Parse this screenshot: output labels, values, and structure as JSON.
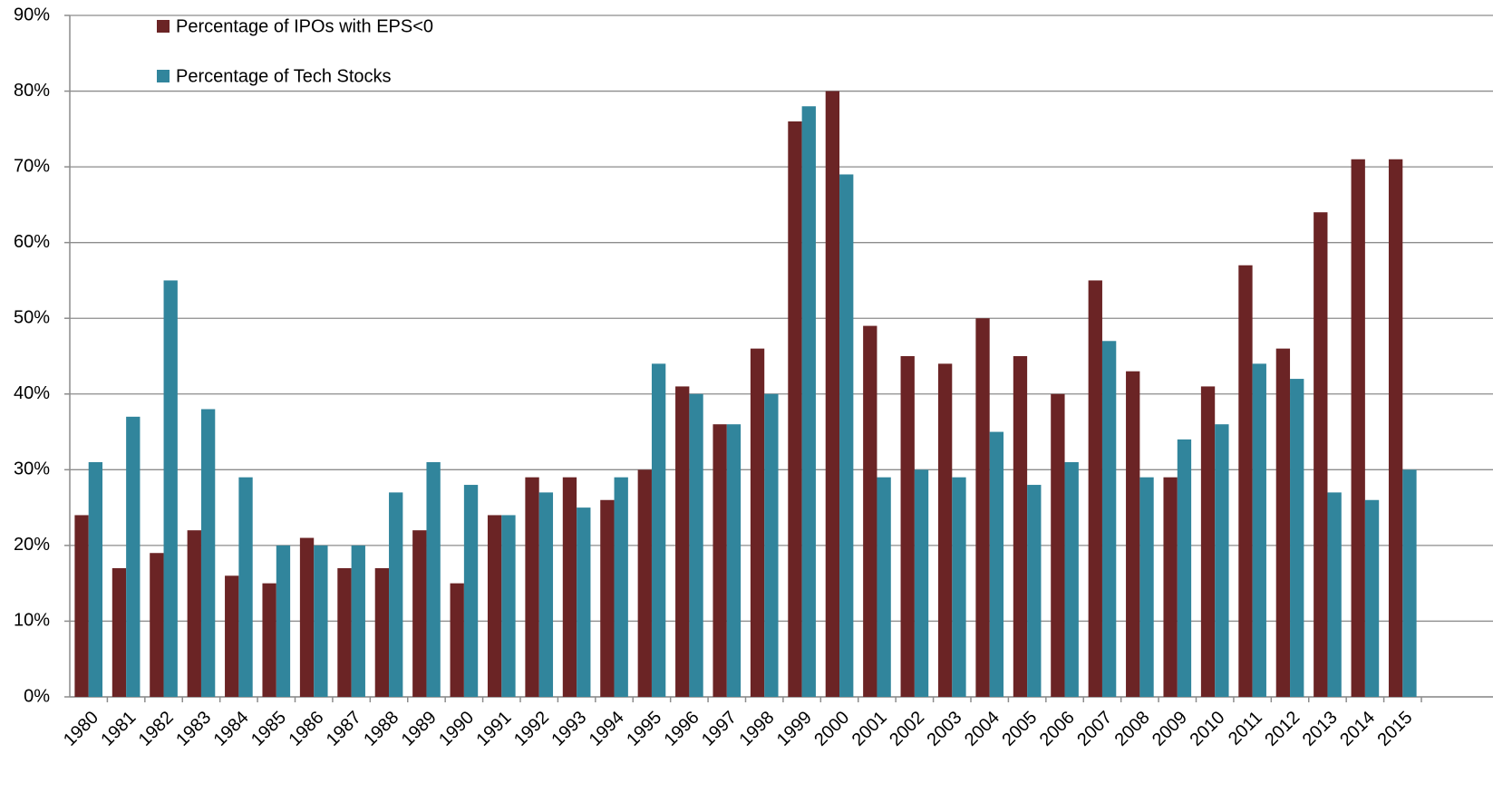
{
  "chart_data": {
    "type": "bar",
    "categories": [
      "1980",
      "1981",
      "1982",
      "1983",
      "1984",
      "1985",
      "1986",
      "1987",
      "1988",
      "1989",
      "1990",
      "1991",
      "1992",
      "1993",
      "1994",
      "1995",
      "1996",
      "1997",
      "1998",
      "1999",
      "2000",
      "2001",
      "2002",
      "2003",
      "2004",
      "2005",
      "2006",
      "2007",
      "2008",
      "2009",
      "2010",
      "2011",
      "2012",
      "2013",
      "2014",
      "2015"
    ],
    "series": [
      {
        "name": "Percentage of IPOs with EPS<0",
        "color": "#6b2425",
        "values": [
          24,
          17,
          19,
          22,
          16,
          15,
          21,
          17,
          17,
          22,
          15,
          24,
          29,
          29,
          26,
          30,
          41,
          36,
          46,
          76,
          80,
          49,
          45,
          44,
          50,
          45,
          40,
          55,
          43,
          29,
          41,
          57,
          46,
          64,
          71,
          71
        ]
      },
      {
        "name": "Percentage of Tech Stocks",
        "color": "#31859c",
        "values": [
          31,
          37,
          55,
          38,
          29,
          20,
          20,
          20,
          27,
          31,
          28,
          24,
          27,
          25,
          29,
          44,
          40,
          36,
          40,
          78,
          69,
          29,
          30,
          29,
          35,
          28,
          31,
          47,
          29,
          34,
          36,
          44,
          42,
          27,
          26,
          30
        ]
      }
    ],
    "ylim": [
      0,
      90
    ],
    "yticks": [
      {
        "value": 0,
        "label": "0%"
      },
      {
        "value": 10,
        "label": "10%"
      },
      {
        "value": 20,
        "label": "20%"
      },
      {
        "value": 30,
        "label": "30%"
      },
      {
        "value": 40,
        "label": "40%"
      },
      {
        "value": 50,
        "label": "50%"
      },
      {
        "value": 60,
        "label": "60%"
      },
      {
        "value": 70,
        "label": "70%"
      },
      {
        "value": 80,
        "label": "80%"
      },
      {
        "value": 90,
        "label": "90%"
      }
    ],
    "grid": true,
    "legend": "top-left"
  }
}
